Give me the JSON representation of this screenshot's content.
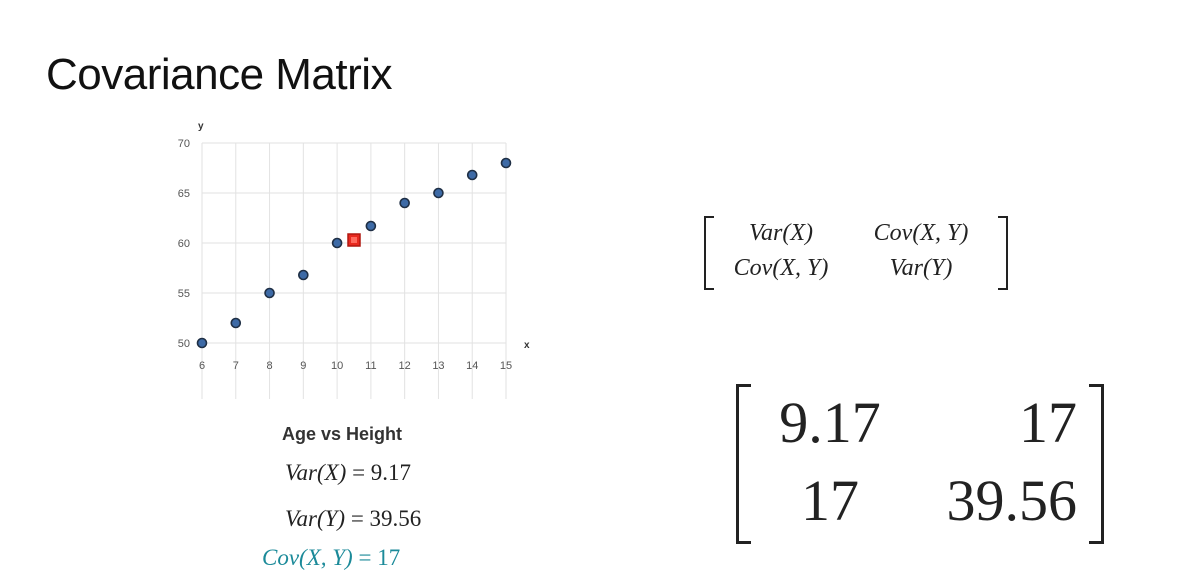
{
  "slide": {
    "title": "Covariance Matrix"
  },
  "chart_data": {
    "type": "scatter",
    "title": "Age vs Height",
    "xlabel": "x",
    "ylabel": "y",
    "xlim": [
      6,
      15
    ],
    "ylim": [
      50,
      70
    ],
    "x_ticks": [
      6,
      7,
      8,
      9,
      10,
      11,
      12,
      13,
      14,
      15
    ],
    "y_ticks": [
      50,
      55,
      60,
      65,
      70
    ],
    "grid": true,
    "series": [
      {
        "color": "#3d6aa6",
        "points": [
          [
            6,
            50
          ],
          [
            7,
            52
          ],
          [
            8,
            55
          ],
          [
            9,
            56.8
          ],
          [
            10,
            60
          ],
          [
            11,
            61.7
          ],
          [
            12,
            64
          ],
          [
            13,
            65
          ],
          [
            14,
            66.8
          ],
          [
            15,
            68
          ]
        ]
      },
      {
        "color": "#e8291f",
        "marker": "square",
        "points": [
          [
            10.5,
            60.3
          ]
        ]
      }
    ]
  },
  "stats": {
    "var_x": {
      "lhs": "Var(X)",
      "rhs": " = 9.17"
    },
    "var_y": {
      "lhs": "Var(Y)",
      "rhs": " = 39.56"
    },
    "cov": {
      "lhs": "Cov(X, Y)",
      "rhs": " = 17"
    },
    "cov_color": "#1b8a99"
  },
  "symbolic_matrix": {
    "cells": [
      "Var(X)",
      "Cov(X, Y)",
      "Cov(X, Y)",
      "Var(Y)"
    ]
  },
  "numeric_matrix": {
    "cells": [
      "9.17",
      "17",
      "17",
      "39.56"
    ]
  }
}
